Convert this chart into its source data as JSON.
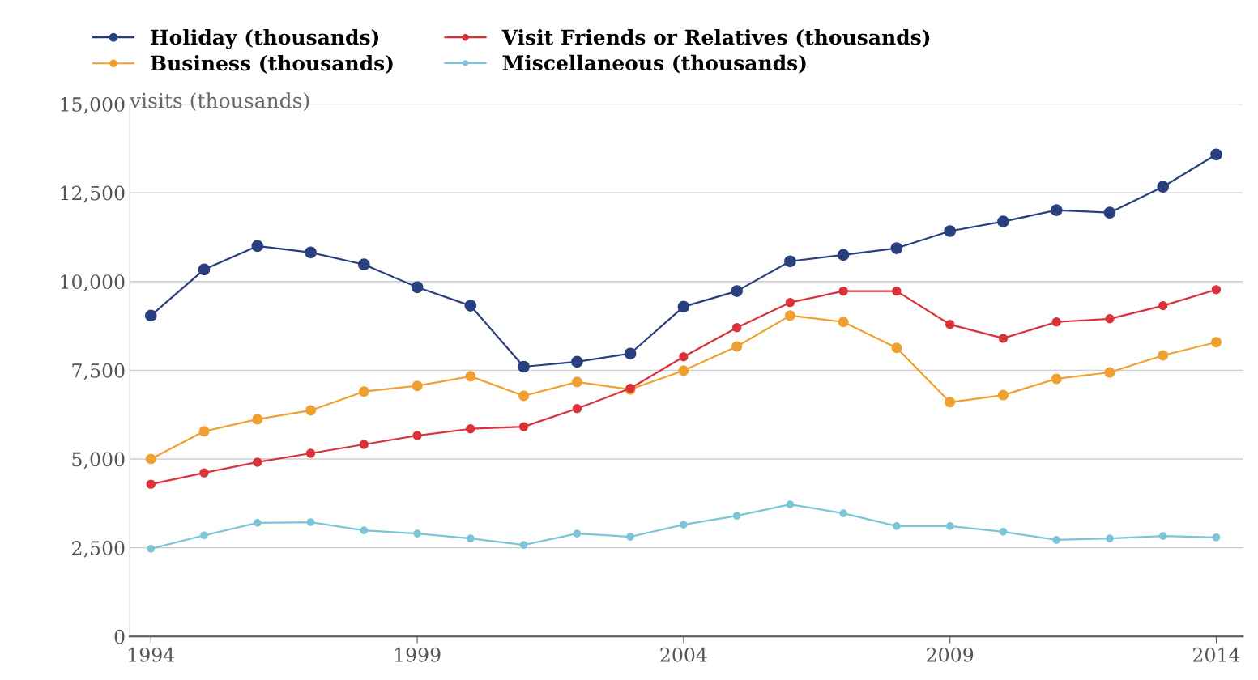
{
  "chart_data": {
    "type": "line",
    "ylabel": "visits (thousands)",
    "x": [
      1994,
      1995,
      1996,
      1997,
      1998,
      1999,
      2000,
      2001,
      2002,
      2003,
      2004,
      2005,
      2006,
      2007,
      2008,
      2009,
      2010,
      2011,
      2012,
      2013,
      2014
    ],
    "series": [
      {
        "name": "Holiday (thousands)",
        "color": "#2a3f7e",
        "values": [
          9040,
          10340,
          11000,
          10820,
          10480,
          9840,
          9320,
          7600,
          7740,
          7970,
          9290,
          9730,
          10570,
          10750,
          10940,
          11420,
          11690,
          12010,
          11940,
          12670,
          13580
        ]
      },
      {
        "name": "Business (thousands)",
        "color": "#f0a030",
        "values": [
          5000,
          5780,
          6120,
          6370,
          6900,
          7060,
          7330,
          6780,
          7170,
          6960,
          7490,
          8170,
          9040,
          8860,
          8130,
          6600,
          6800,
          7260,
          7440,
          7920,
          8290
        ]
      },
      {
        "name": "Visit Friends or Relatives (thousands)",
        "color": "#d9323a",
        "values": [
          4290,
          4610,
          4910,
          5160,
          5410,
          5660,
          5850,
          5910,
          6420,
          6990,
          7880,
          8700,
          9410,
          9730,
          9730,
          8790,
          8400,
          8860,
          8950,
          9320,
          9770
        ]
      },
      {
        "name": "Miscellaneous (thousands)",
        "color": "#7cc4d8",
        "values": [
          2470,
          2850,
          3200,
          3220,
          2990,
          2900,
          2760,
          2580,
          2900,
          2810,
          3150,
          3400,
          3720,
          3470,
          3110,
          3110,
          2950,
          2720,
          2760,
          2830,
          2790
        ]
      }
    ],
    "xlim": [
      1993.6,
      2014.5
    ],
    "xticks": [
      1994,
      1999,
      2004,
      2009,
      2014
    ],
    "ylim": [
      0,
      15000
    ],
    "yticks": [
      {
        "value": 0,
        "label": "0"
      },
      {
        "value": 2500,
        "label": "2,500"
      },
      {
        "value": 5000,
        "label": "5,000"
      },
      {
        "value": 7500,
        "label": "7,500"
      },
      {
        "value": 10000,
        "label": "10,000"
      },
      {
        "value": 12500,
        "label": "12,500"
      },
      {
        "value": 15000,
        "label": "15,000"
      }
    ],
    "grid": "y",
    "legend": "top",
    "marker": "circle",
    "line_style": "solid"
  }
}
